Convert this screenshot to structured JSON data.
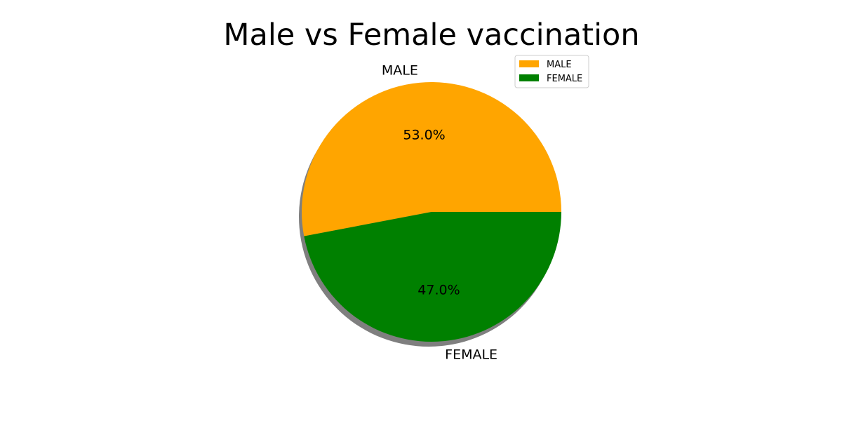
{
  "chart_data": {
    "type": "pie",
    "title": "Male vs Female vaccination",
    "categories": [
      "MALE",
      "FEMALE"
    ],
    "values": [
      53.0,
      47.0
    ],
    "percent_labels": [
      "53.0%",
      "47.0%"
    ],
    "colors": [
      "#ffa500",
      "#008000"
    ],
    "shadow": true,
    "legend": {
      "placement": "top-right",
      "entries": [
        "MALE",
        "FEMALE"
      ]
    }
  }
}
